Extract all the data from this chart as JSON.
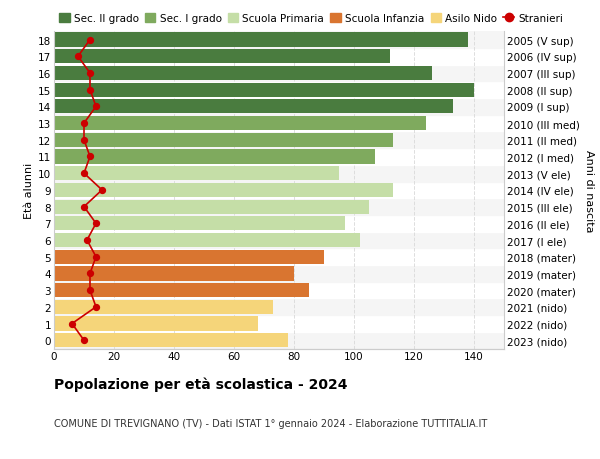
{
  "ages": [
    0,
    1,
    2,
    3,
    4,
    5,
    6,
    7,
    8,
    9,
    10,
    11,
    12,
    13,
    14,
    15,
    16,
    17,
    18
  ],
  "years": [
    "2023 (nido)",
    "2022 (nido)",
    "2021 (nido)",
    "2020 (mater)",
    "2019 (mater)",
    "2018 (mater)",
    "2017 (I ele)",
    "2016 (II ele)",
    "2015 (III ele)",
    "2014 (IV ele)",
    "2013 (V ele)",
    "2012 (I med)",
    "2011 (II med)",
    "2010 (III med)",
    "2009 (I sup)",
    "2008 (II sup)",
    "2007 (III sup)",
    "2006 (IV sup)",
    "2005 (V sup)"
  ],
  "bar_values": [
    78,
    68,
    73,
    85,
    80,
    90,
    102,
    97,
    105,
    113,
    95,
    107,
    113,
    124,
    133,
    140,
    126,
    112,
    138
  ],
  "stranieri": [
    10,
    6,
    14,
    12,
    12,
    14,
    11,
    14,
    10,
    16,
    10,
    12,
    10,
    10,
    14,
    12,
    12,
    8,
    12
  ],
  "categories": {
    "Sec. II grado": {
      "ages": [
        14,
        15,
        16,
        17,
        18
      ],
      "color": "#4a7c3f"
    },
    "Sec. I grado": {
      "ages": [
        11,
        12,
        13
      ],
      "color": "#7faa5e"
    },
    "Scuola Primaria": {
      "ages": [
        6,
        7,
        8,
        9,
        10
      ],
      "color": "#c5dea7"
    },
    "Scuola Infanzia": {
      "ages": [
        3,
        4,
        5
      ],
      "color": "#d97530"
    },
    "Asilo Nido": {
      "ages": [
        0,
        1,
        2
      ],
      "color": "#f5d57a"
    }
  },
  "stranieri_color": "#cc0000",
  "bg_color": "#ffffff",
  "grid_color": "#dddddd",
  "title": "Popolazione per età scolastica - 2024",
  "subtitle": "COMUNE DI TREVIGNANO (TV) - Dati ISTAT 1° gennaio 2024 - Elaborazione TUTTITALIA.IT",
  "ylabel_left": "Età alunni",
  "ylabel_right": "Anni di nascita",
  "xlim": [
    0,
    150
  ],
  "xticks": [
    0,
    20,
    40,
    60,
    80,
    100,
    120,
    140
  ],
  "legend_labels": [
    "Sec. II grado",
    "Sec. I grado",
    "Scuola Primaria",
    "Scuola Infanzia",
    "Asilo Nido",
    "Stranieri"
  ],
  "legend_colors": [
    "#4a7c3f",
    "#7faa5e",
    "#c5dea7",
    "#d97530",
    "#f5d57a",
    "#cc0000"
  ]
}
